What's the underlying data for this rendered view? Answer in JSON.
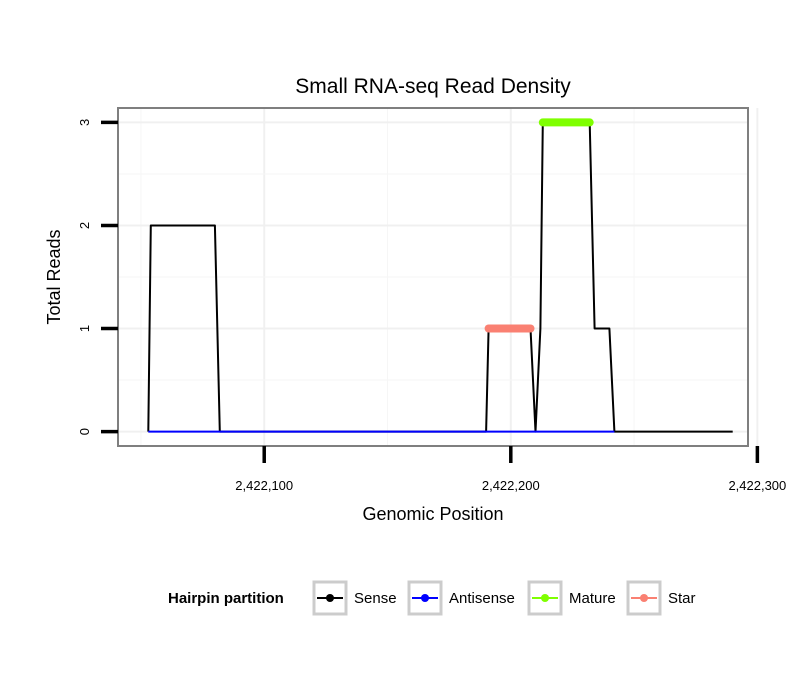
{
  "chart_data": {
    "type": "line",
    "title": "Small RNA-seq Read Density",
    "xlabel": "Genomic Position",
    "ylabel": "Total Reads",
    "xlim": [
      2422040.7,
      2422296.2
    ],
    "ylim": [
      -0.14,
      3.14
    ],
    "x_ticks": [
      2422100,
      2422200,
      2422300
    ],
    "x_tick_labels": [
      "2,422,100",
      "2,422,200",
      "2,422,300"
    ],
    "y_ticks": [
      0,
      1,
      2,
      3
    ],
    "y_tick_labels": [
      "0",
      "1",
      "2",
      "3"
    ],
    "grid": true,
    "series": [
      {
        "name": "Sense",
        "color": "#000000",
        "x": [
          2422053,
          2422054,
          2422080,
          2422082,
          2422190,
          2422191,
          2422208,
          2422210,
          2422212,
          2422213,
          2422232,
          2422234,
          2422240,
          2422242,
          2422290
        ],
        "y": [
          0,
          2,
          2,
          0,
          0,
          1,
          1,
          0,
          1,
          3,
          3,
          1,
          1,
          0,
          0
        ]
      },
      {
        "name": "Antisense",
        "color": "#0000ff",
        "x": [
          2422053,
          2422082,
          2422191,
          2422208,
          2422210,
          2422242
        ],
        "y": [
          0,
          0,
          0,
          0,
          0,
          0
        ]
      },
      {
        "name": "Mature",
        "color": "#7fff00",
        "x": [
          2422213,
          2422232
        ],
        "y": [
          3,
          3
        ]
      },
      {
        "name": "Star",
        "color": "#fa8072",
        "x": [
          2422191,
          2422208
        ],
        "y": [
          1,
          1
        ]
      }
    ],
    "legend": {
      "title": "Hairpin partition",
      "position": "bottom",
      "entries": [
        {
          "label": "Sense",
          "color": "#000000"
        },
        {
          "label": "Antisense",
          "color": "#0000ff"
        },
        {
          "label": "Mature",
          "color": "#7fff00"
        },
        {
          "label": "Star",
          "color": "#fa8072"
        }
      ]
    }
  }
}
